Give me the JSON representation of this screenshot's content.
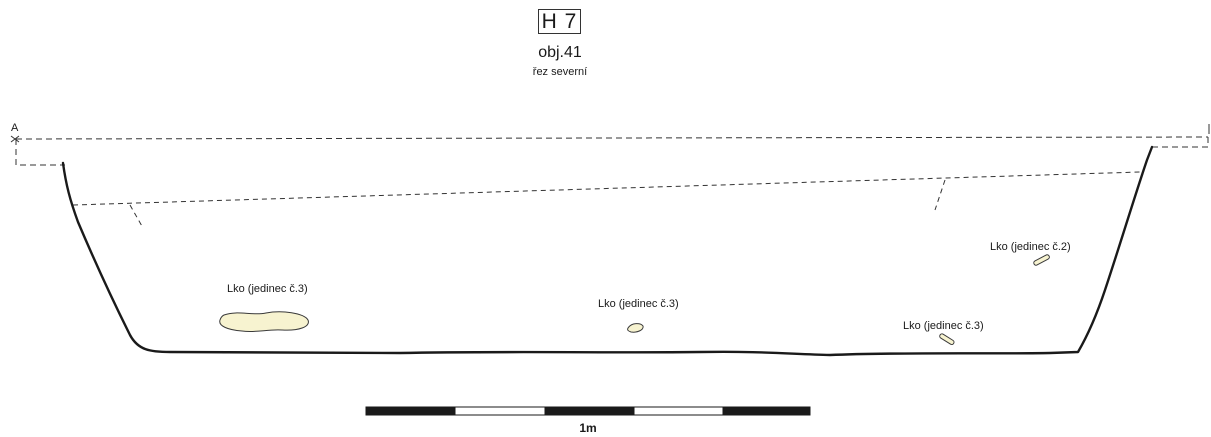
{
  "header": {
    "section_code": "H 7",
    "feature": "obj.41",
    "section_name": "řez severní"
  },
  "profile": {
    "point_a_label": "A"
  },
  "finds": [
    {
      "label": "Lko (jedinec č.3)",
      "shape": "large-blob"
    },
    {
      "label": "Lko (jedinec č.3)",
      "shape": "small-fragment"
    },
    {
      "label": "Lko (jedinec č.3)",
      "shape": "elongated-fragment"
    },
    {
      "label": "Lko (jedinec č.2)",
      "shape": "elongated-fragment"
    }
  ],
  "scale_bar": {
    "label": "1m",
    "segments": 5
  },
  "colors": {
    "line": "#1a1a1a",
    "dashed_line": "#333333",
    "find_fill": "#f7f3d0",
    "find_outline": "#3a3a3a",
    "scale_dark": "#1a1a1a",
    "scale_light": "#ffffff"
  }
}
